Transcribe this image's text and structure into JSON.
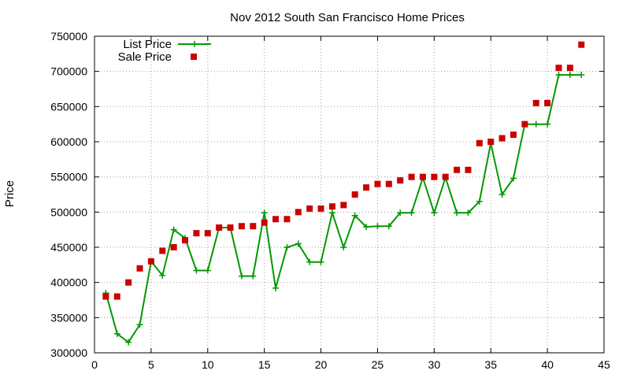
{
  "chart_data": {
    "type": "line",
    "title": "Nov 2012 South San Francisco Home Prices",
    "xlabel": "",
    "ylabel": "Price",
    "xlim": [
      0,
      45
    ],
    "ylim": [
      300000,
      750000
    ],
    "xticks": [
      "0",
      "5",
      "10",
      "15",
      "20",
      "25",
      "30",
      "35",
      "40",
      "45"
    ],
    "yticks": [
      "300000",
      "350000",
      "400000",
      "450000",
      "500000",
      "550000",
      "600000",
      "650000",
      "700000",
      "750000"
    ],
    "grid": true,
    "legend_position": "top-left",
    "series": [
      {
        "name": "List Price",
        "style": "line-with-plus-markers",
        "color": "#009900",
        "x": [
          1,
          2,
          3,
          4,
          5,
          6,
          7,
          8,
          9,
          10,
          11,
          12,
          13,
          14,
          15,
          16,
          17,
          18,
          19,
          20,
          21,
          22,
          23,
          24,
          25,
          26,
          27,
          28,
          29,
          30,
          31,
          32,
          33,
          34,
          35,
          36,
          37,
          38,
          39,
          40,
          41,
          42,
          43
        ],
        "values": [
          385000,
          327000,
          315000,
          340000,
          430000,
          410000,
          475000,
          463000,
          417000,
          417000,
          478000,
          478000,
          409000,
          409000,
          499000,
          392000,
          450000,
          455000,
          429000,
          429000,
          499000,
          450000,
          495000,
          479000,
          480000,
          480000,
          499000,
          499000,
          549000,
          499000,
          549000,
          499000,
          499000,
          515000,
          598000,
          525000,
          548000,
          625000,
          625000,
          625000,
          695000,
          695000,
          695000
        ]
      },
      {
        "name": "Sale Price",
        "style": "square-markers",
        "color": "#cc0000",
        "x": [
          1,
          2,
          3,
          4,
          5,
          6,
          7,
          8,
          9,
          10,
          11,
          12,
          13,
          14,
          15,
          16,
          17,
          18,
          19,
          20,
          21,
          22,
          23,
          24,
          25,
          26,
          27,
          28,
          29,
          30,
          31,
          32,
          33,
          34,
          35,
          36,
          37,
          38,
          39,
          40,
          41,
          42,
          43
        ],
        "values": [
          380000,
          380000,
          400000,
          420000,
          430000,
          445000,
          450000,
          460000,
          470000,
          470000,
          478000,
          478000,
          480000,
          480000,
          485000,
          490000,
          490000,
          500000,
          505000,
          505000,
          508000,
          510000,
          525000,
          535000,
          540000,
          540000,
          545000,
          550000,
          550000,
          550000,
          550000,
          560000,
          560000,
          598000,
          600000,
          605000,
          610000,
          625000,
          655000,
          655000,
          705000,
          705000,
          738000
        ]
      }
    ]
  }
}
